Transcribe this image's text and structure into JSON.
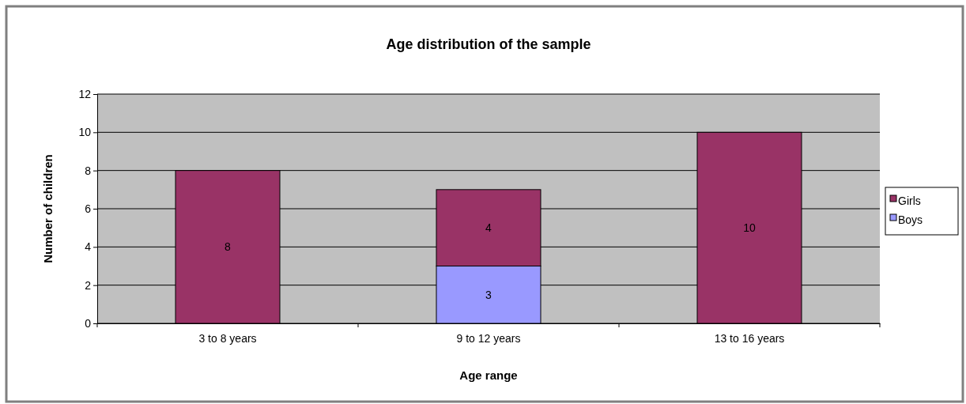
{
  "chart_data": {
    "type": "bar",
    "title": "Age distribution of the sample",
    "xlabel": "Age range",
    "ylabel": "Number of children",
    "categories": [
      "3 to 8 years",
      "9 to 12 years",
      "13 to 16 years"
    ],
    "stacked": true,
    "series": [
      {
        "name": "Boys",
        "color": "#9999ff",
        "values": [
          0,
          3,
          0
        ],
        "value_labels": [
          null,
          "3",
          null
        ]
      },
      {
        "name": "Girls",
        "color": "#993366",
        "values": [
          8,
          4,
          10
        ],
        "value_labels": [
          "8",
          "4",
          "10"
        ]
      }
    ],
    "ylim": [
      0,
      12
    ],
    "yticks": [
      0,
      2,
      4,
      6,
      8,
      10,
      12
    ],
    "grid": "y",
    "legend": "right"
  }
}
